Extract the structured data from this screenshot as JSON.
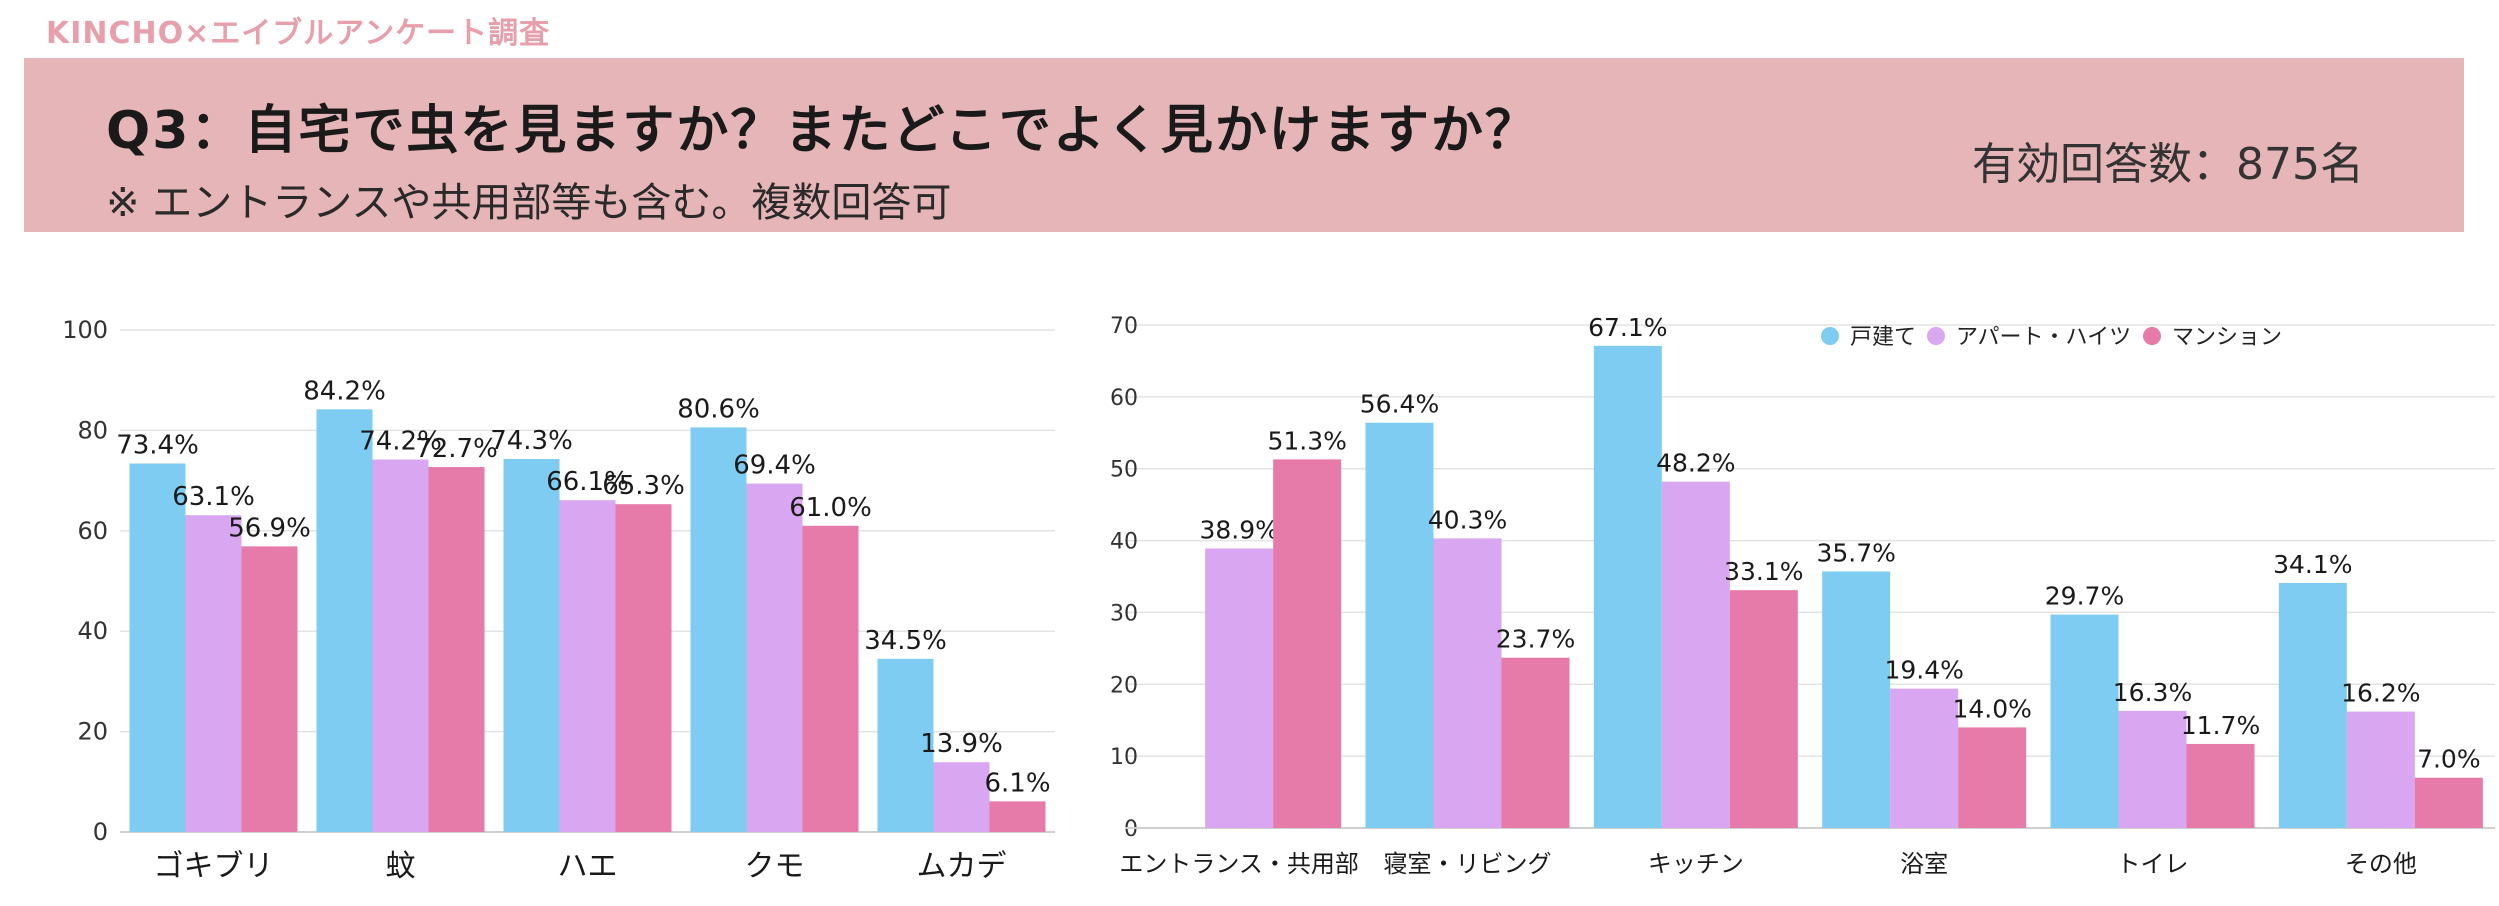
{
  "brand": "KINCHO×エイブルアンケート調査",
  "banner": {
    "title": "Q3：自宅で虫を見ますか？またどこでよく見かけますか？",
    "subtitle": "※ エントランスや共用部等も含む。複数回答可",
    "responses": "有効回答数：875名"
  },
  "colors": {
    "detached": "#7fccf2",
    "apartment": "#d9a6f2",
    "mansion": "#e67aa8"
  },
  "chart_data": [
    {
      "type": "bar",
      "categories": [
        "ゴキブリ",
        "蚊",
        "ハエ",
        "クモ",
        "ムカデ"
      ],
      "series": [
        {
          "values": [
            73.4,
            84.2,
            74.3,
            80.6,
            34.5
          ],
          "color": "#7fccf2"
        },
        {
          "values": [
            63.1,
            74.2,
            66.1,
            69.4,
            13.9
          ],
          "color": "#d9a6f2"
        },
        {
          "values": [
            56.9,
            72.7,
            65.3,
            61.0,
            6.1
          ],
          "color": "#e67aa8"
        }
      ],
      "ylim": [
        0,
        100
      ],
      "yticks": [
        0,
        20,
        40,
        60,
        80,
        100
      ],
      "grid": true,
      "legend": "none"
    },
    {
      "type": "bar",
      "categories": [
        "エントランス・共用部",
        "寝室・リビング",
        "キッチン",
        "浴室",
        "トイレ",
        "その他"
      ],
      "series": [
        {
          "name": "戸建て",
          "values": [
            null,
            56.4,
            67.1,
            35.7,
            29.7,
            34.1
          ],
          "color": "#7fccf2"
        },
        {
          "name": "アパート・ハイツ",
          "values": [
            38.9,
            40.3,
            48.2,
            19.4,
            16.3,
            16.2
          ],
          "color": "#d9a6f2"
        },
        {
          "name": "マンション",
          "values": [
            51.3,
            23.7,
            33.1,
            14.0,
            11.7,
            7.0
          ],
          "color": "#e67aa8"
        }
      ],
      "ylim": [
        0,
        70
      ],
      "yticks": [
        0,
        10,
        20,
        30,
        40,
        50,
        60,
        70
      ],
      "grid": true,
      "legend": "top-right"
    }
  ]
}
